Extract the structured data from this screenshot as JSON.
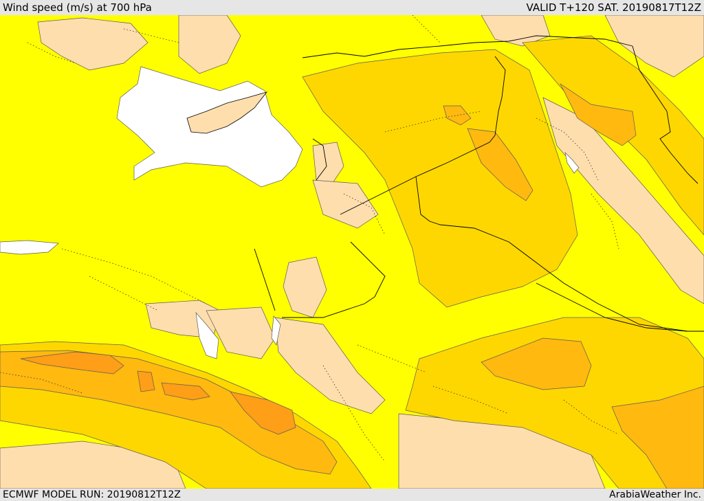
{
  "header": {
    "title": "Wind speed (m/s) at 700 hPa",
    "valid_time": "VALID T+120 SAT. 20190817T12Z"
  },
  "footer": {
    "model_run": "ECMWF MODEL RUN: 20190812T12Z",
    "credit": "ArabiaWeather Inc."
  },
  "map": {
    "variable": "wind speed",
    "level_hpa": 700,
    "colors": {
      "sea": "#ffffff",
      "low": "#ffdead",
      "mid": "#ffff00",
      "high": "#ffd700",
      "higher": "#ffb90f",
      "highest": "#ff9e17",
      "contour": "#5a5a5a",
      "border": "#000000"
    }
  }
}
